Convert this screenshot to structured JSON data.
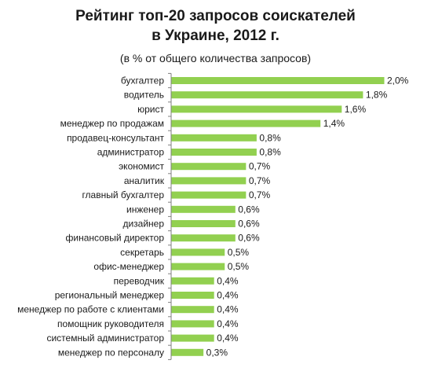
{
  "chart_data": {
    "type": "bar",
    "orientation": "horizontal",
    "title_line1": "Рейтинг топ-20 запросов соискателей",
    "title_line2": "в Украине, 2012 г.",
    "subtitle": "(в % от общего количества запросов)",
    "categories": [
      "бухгалтер",
      "водитель",
      "юрист",
      "менеджер по продажам",
      "продавец-консультант",
      "администратор",
      "экономист",
      "аналитик",
      "главный бухгалтер",
      "инженер",
      "дизайнер",
      "финансовый директор",
      "секретарь",
      "офис-менеджер",
      "переводчик",
      "региональный менеджер",
      "менеджер по работе с клиентами",
      "помощник руководителя",
      "системный администратор",
      "менеджер по персоналу"
    ],
    "values": [
      2.0,
      1.8,
      1.6,
      1.4,
      0.8,
      0.8,
      0.7,
      0.7,
      0.7,
      0.6,
      0.6,
      0.6,
      0.5,
      0.5,
      0.4,
      0.4,
      0.4,
      0.4,
      0.4,
      0.3
    ],
    "value_labels": [
      "2,0%",
      "1,8%",
      "1,6%",
      "1,4%",
      "0,8%",
      "0,8%",
      "0,7%",
      "0,7%",
      "0,7%",
      "0,6%",
      "0,6%",
      "0,6%",
      "0,5%",
      "0,5%",
      "0,4%",
      "0,4%",
      "0,4%",
      "0,4%",
      "0,4%",
      "0,3%"
    ],
    "xlim": [
      0,
      2.0
    ],
    "bar_color": "#92d050",
    "grid": false,
    "legend": "none"
  }
}
